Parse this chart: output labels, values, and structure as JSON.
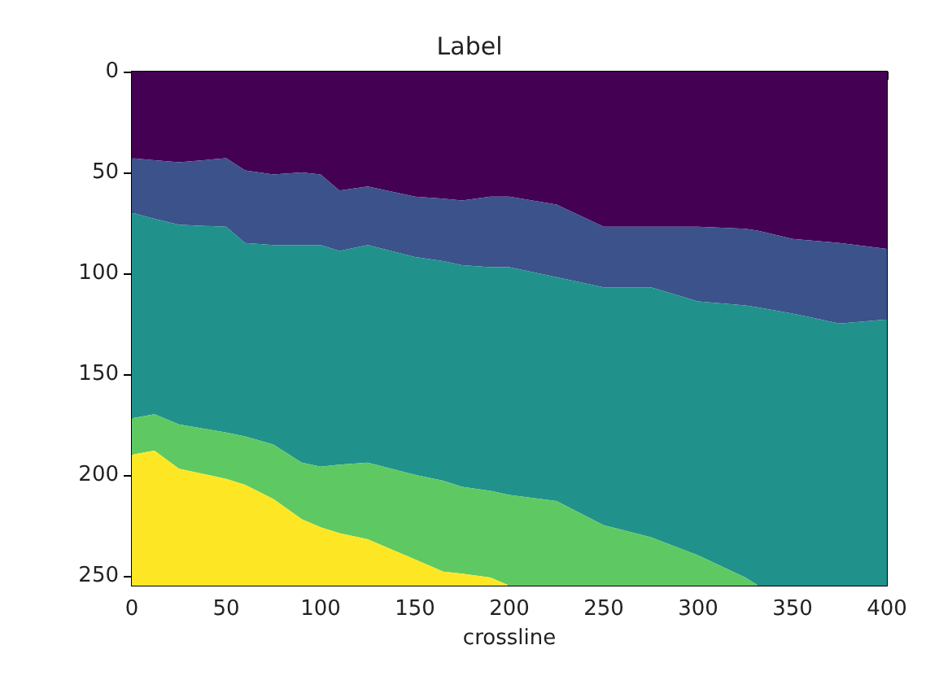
{
  "chart_data": {
    "type": "area",
    "title": "Label",
    "xlabel": "crossline",
    "stacked": true,
    "x": [
      0,
      12,
      25,
      50,
      60,
      75,
      90,
      100,
      110,
      125,
      150,
      165,
      175,
      190,
      200,
      225,
      250,
      275,
      300,
      325,
      332,
      350,
      375,
      400
    ],
    "series": [
      {
        "color": "#440154",
        "values": [
          43,
          44,
          45,
          43,
          49,
          51,
          50,
          51,
          59,
          57,
          62,
          63,
          64,
          62,
          62,
          66,
          77,
          77,
          77,
          78,
          79,
          83,
          85,
          88
        ]
      },
      {
        "color": "#3b528b",
        "values": [
          27,
          29,
          31,
          34,
          36,
          35,
          36,
          35,
          30,
          29,
          30,
          31,
          32,
          35,
          35,
          36,
          30,
          30,
          37,
          38,
          38,
          37,
          40,
          35
        ]
      },
      {
        "color": "#21918c",
        "values": [
          102,
          97,
          99,
          102,
          96,
          99,
          108,
          110,
          106,
          108,
          108,
          109,
          110,
          111,
          113,
          111,
          118,
          124,
          126,
          135,
          138,
          135,
          130,
          132
        ]
      },
      {
        "color": "#5ec962",
        "values": [
          18,
          18,
          22,
          23,
          24,
          27,
          28,
          30,
          34,
          38,
          42,
          45,
          43,
          43,
          45,
          42,
          30,
          24,
          15,
          4,
          0,
          0,
          0,
          0
        ]
      },
      {
        "color": "#fde725",
        "values": [
          65,
          67,
          58,
          53,
          50,
          43,
          33,
          29,
          26,
          23,
          13,
          7,
          6,
          4,
          0,
          0,
          0,
          0,
          0,
          0,
          0,
          0,
          0,
          0
        ]
      }
    ],
    "xlim": [
      0,
      400
    ],
    "xticks": [
      0,
      50,
      100,
      150,
      200,
      250,
      300,
      350,
      400
    ],
    "ylim": [
      255,
      0
    ],
    "yticks": [
      0,
      50,
      100,
      150,
      200,
      250
    ]
  }
}
